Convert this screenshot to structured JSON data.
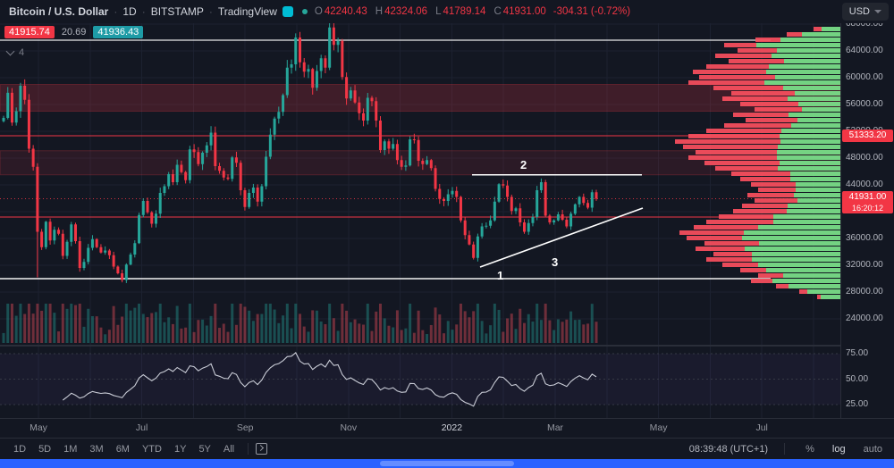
{
  "header": {
    "symbol": "Bitcoin / U.S. Dollar",
    "interval": "1D",
    "exchange": "BITSTAMP",
    "brand": "TradingView",
    "currency": "USD",
    "ohlc": {
      "o_label": "O",
      "o": "42240.43",
      "h_label": "H",
      "h": "42324.06",
      "l_label": "L",
      "l": "41789.14",
      "c_label": "C",
      "c": "41931.00",
      "change": "-304.31 (-0.72%)"
    }
  },
  "quote_row": {
    "bid": "41915.74",
    "spread": "20.69",
    "ask": "41936.43"
  },
  "objects_tree": {
    "count": "4"
  },
  "price_axis": {
    "ticks": [
      "68000.00",
      "64000.00",
      "60000.00",
      "56000.00",
      "52000.00",
      "48000.00",
      "44000.00",
      "40000.00",
      "36000.00",
      "32000.00",
      "28000.00",
      "24000.00"
    ],
    "line_label": "51333.20",
    "last_price": "41931.00",
    "countdown": "16:20:12"
  },
  "rsi_axis": {
    "ticks": [
      "75.00",
      "50.00",
      "25.00"
    ]
  },
  "time_axis": {
    "labels": [
      "May",
      "Jul",
      "Sep",
      "Nov",
      "2022",
      "Mar",
      "May",
      "Jul"
    ]
  },
  "bottom_toolbar": {
    "ranges": [
      "1D",
      "5D",
      "1M",
      "3M",
      "6M",
      "YTD",
      "1Y",
      "5Y",
      "All"
    ],
    "clock": "08:39:48 (UTC+1)",
    "percent": "%",
    "log_label": "log",
    "auto_label": "auto"
  },
  "colors": {
    "up": "#26a69a",
    "down": "#f23645",
    "accent_red": "#f23645",
    "profile_red": "#fb4f5e",
    "profile_green": "#7ce38b",
    "taskbar_blue": "#2962ff"
  },
  "chart_data": {
    "type": "candlestick",
    "title": "Bitcoin / U.S. Dollar, 1D, BITSTAMP",
    "x_range": [
      "Apr 2021",
      "Aug 2022"
    ],
    "y_range": [
      24000,
      68000
    ],
    "scale": "linear ticks every 4000, right axis",
    "closes": [
      54000,
      57750,
      53300,
      55000,
      58800,
      56700,
      49400,
      46700,
      37000,
      34700,
      38500,
      35700,
      37300,
      36700,
      33400,
      35500,
      38100,
      35600,
      31600,
      32500,
      34600,
      35900,
      34700,
      33900,
      34200,
      33500,
      31800,
      30800,
      29800,
      32100,
      33600,
      35300,
      39500,
      41600,
      39900,
      38200,
      39700,
      42800,
      43800,
      45600,
      44400,
      47000,
      45900,
      44700,
      49300,
      48900,
      47100,
      48800,
      49900,
      51800,
      46800,
      46100,
      45100,
      44900,
      48100,
      47300,
      43200,
      40700,
      42800,
      43600,
      41500,
      43800,
      48200,
      51500,
      53900,
      54900,
      57400,
      61500,
      62000,
      66000,
      62300,
      60900,
      61300,
      58500,
      61000,
      62900,
      61500,
      67500,
      64900,
      65500,
      60100,
      56900,
      58100,
      56300,
      54700,
      53600,
      57000,
      56500,
      53600,
      49200,
      50500,
      49400,
      50100,
      47700,
      46700,
      46900,
      50800,
      50700,
      47600,
      47100,
      47700,
      46500,
      43400,
      41900,
      41600,
      42600,
      43100,
      42200,
      38700,
      36500,
      35100,
      33100,
      36300,
      37800,
      37900,
      38700,
      41500,
      44100,
      43900,
      42200,
      40100,
      40500,
      38400,
      37000,
      38300,
      39200,
      43200,
      44400,
      39400,
      38400,
      38700,
      39600,
      38800,
      37800,
      39700,
      41100,
      42200,
      41300,
      40600,
      42900,
      41931
    ],
    "wick_overrides": {
      "8": {
        "low": 30200
      },
      "77": {
        "high": 69000
      }
    },
    "last_candle": {
      "open": 42240.43,
      "high": 42324.06,
      "low": 41789.14,
      "close": 41931.0
    },
    "drawings": {
      "white_top_line_price": 65600,
      "support_line": {
        "price": 30000,
        "label": "1"
      },
      "resistance_segment": {
        "price": 45500,
        "label": "2"
      },
      "trendline": {
        "label": "3",
        "start_price": 32700,
        "end_price": 41500
      },
      "red_line_labeled": {
        "price": 51333.2,
        "label": "51333.20"
      },
      "red_line_unlabeled": {
        "price": 39200
      },
      "last_price_line": {
        "price": 41931
      },
      "zones": [
        {
          "top": 59000,
          "bottom": 55000
        },
        {
          "top": 49100,
          "bottom": 45500
        }
      ]
    },
    "rsi": {
      "period": 14,
      "levels": [
        75,
        50,
        25
      ]
    },
    "volume_profile": {
      "anchor": "right",
      "rows_top_to_bottom_price": [
        69000,
        28500
      ],
      "rows": [
        [
          30,
          0.7
        ],
        [
          60,
          0.72
        ],
        [
          95,
          0.7
        ],
        [
          130,
          0.72
        ],
        [
          115,
          0.62
        ],
        [
          140,
          0.55
        ],
        [
          125,
          0.5
        ],
        [
          150,
          0.53
        ],
        [
          165,
          0.5
        ],
        [
          158,
          0.46
        ],
        [
          170,
          0.5
        ],
        [
          142,
          0.45
        ],
        [
          122,
          0.42
        ],
        [
          132,
          0.45
        ],
        [
          112,
          0.42
        ],
        [
          96,
          0.45
        ],
        [
          120,
          0.48
        ],
        [
          106,
          0.45
        ],
        [
          130,
          0.42
        ],
        [
          150,
          0.44
        ],
        [
          170,
          0.4
        ],
        [
          185,
          0.36
        ],
        [
          176,
          0.4
        ],
        [
          162,
          0.44
        ],
        [
          170,
          0.42
        ],
        [
          152,
          0.45
        ],
        [
          140,
          0.5
        ],
        [
          122,
          0.46
        ],
        [
          112,
          0.5
        ],
        [
          100,
          0.5
        ],
        [
          92,
          0.54
        ],
        [
          104,
          0.5
        ],
        [
          96,
          0.5
        ],
        [
          110,
          0.54
        ],
        [
          120,
          0.5
        ],
        [
          136,
          0.55
        ],
        [
          150,
          0.5
        ],
        [
          164,
          0.56
        ],
        [
          180,
          0.6
        ],
        [
          172,
          0.64
        ],
        [
          152,
          0.6
        ],
        [
          162,
          0.66
        ],
        [
          142,
          0.7
        ],
        [
          150,
          0.66
        ],
        [
          132,
          0.7
        ],
        [
          112,
          0.74
        ],
        [
          92,
          0.7
        ],
        [
          100,
          0.76
        ],
        [
          72,
          0.8
        ],
        [
          46,
          0.8
        ],
        [
          26,
          0.85
        ]
      ]
    }
  }
}
